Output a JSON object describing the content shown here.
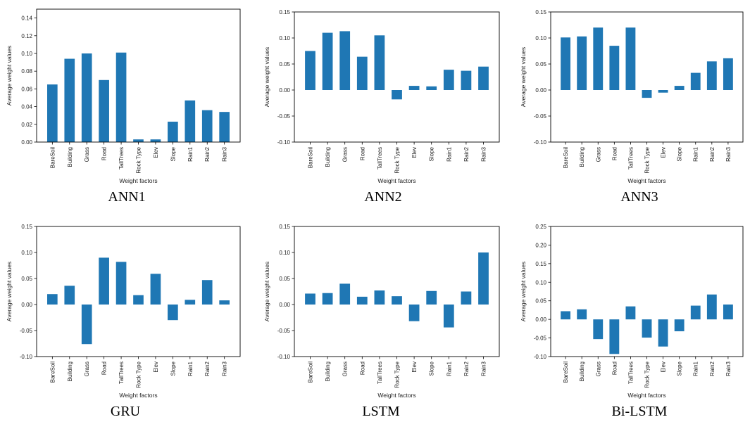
{
  "chart_data": [
    {
      "type": "bar",
      "caption": "ANN1",
      "xlabel": "Weight factors",
      "ylabel": "Average weight values",
      "categories": [
        "BareSoil",
        "Building",
        "Grass",
        "Road",
        "TallTrees",
        "Rock Type",
        "Elev",
        "Slope",
        "Rain1",
        "Rain2",
        "Rain3"
      ],
      "values": [
        0.065,
        0.094,
        0.1,
        0.07,
        0.101,
        0.003,
        0.003,
        0.023,
        0.047,
        0.036,
        0.034
      ],
      "ylim": [
        0,
        0.15
      ],
      "yticks": [
        0.0,
        0.02,
        0.04,
        0.06,
        0.08,
        0.1,
        0.12,
        0.14
      ],
      "ytick_labels": [
        "0.00",
        "0.02",
        "0.04",
        "0.06",
        "0.08",
        "0.10",
        "0.12",
        "0.14"
      ],
      "color": "#1f77b4"
    },
    {
      "type": "bar",
      "caption": "ANN2",
      "xlabel": "Weight factors",
      "ylabel": "Average weight values",
      "categories": [
        "BareSoil",
        "Building",
        "Grass",
        "Road",
        "TallTrees",
        "Rock Type",
        "Elev",
        "Slope",
        "Rain1",
        "Rain2",
        "Rain3"
      ],
      "values": [
        0.075,
        0.11,
        0.113,
        0.064,
        0.105,
        -0.018,
        0.008,
        0.007,
        0.039,
        0.037,
        0.045
      ],
      "ylim": [
        -0.1,
        0.15
      ],
      "yticks": [
        -0.1,
        -0.05,
        0.0,
        0.05,
        0.1,
        0.15
      ],
      "ytick_labels": [
        "-0.10",
        "-0.05",
        "0.00",
        "0.05",
        "0.10",
        "0.15"
      ],
      "color": "#1f77b4"
    },
    {
      "type": "bar",
      "caption": "ANN3",
      "xlabel": "Weight factors",
      "ylabel": "Average weight values",
      "categories": [
        "BareSoil",
        "Building",
        "Grass",
        "Road",
        "TallTrees",
        "Rock Type",
        "Elev",
        "Slope",
        "Rain1",
        "Rain2",
        "Rain3"
      ],
      "values": [
        0.101,
        0.103,
        0.12,
        0.085,
        0.12,
        -0.015,
        -0.005,
        0.008,
        0.033,
        0.055,
        0.061
      ],
      "ylim": [
        -0.1,
        0.15
      ],
      "yticks": [
        -0.1,
        -0.05,
        0.0,
        0.05,
        0.1,
        0.15
      ],
      "ytick_labels": [
        "-0.10",
        "-0.05",
        "0.00",
        "0.05",
        "0.10",
        "0.15"
      ],
      "color": "#1f77b4"
    },
    {
      "type": "bar",
      "caption": "GRU",
      "xlabel": "Weight factors",
      "ylabel": "Average weight values",
      "categories": [
        "BareSoil",
        "Building",
        "Grass",
        "Road",
        "TallTrees",
        "Rock Type",
        "Elev",
        "Slope",
        "Rain1",
        "Rain2",
        "Rain3"
      ],
      "values": [
        0.02,
        0.036,
        -0.076,
        0.09,
        0.082,
        0.018,
        0.059,
        -0.03,
        0.009,
        0.047,
        0.008
      ],
      "ylim": [
        -0.1,
        0.15
      ],
      "yticks": [
        -0.1,
        -0.05,
        0.0,
        0.05,
        0.1,
        0.15
      ],
      "ytick_labels": [
        "-0.10",
        "-0.05",
        "0.00",
        "0.05",
        "0.10",
        "0.15"
      ],
      "color": "#1f77b4"
    },
    {
      "type": "bar",
      "caption": "LSTM",
      "xlabel": "Weight factors",
      "ylabel": "Average weight values",
      "categories": [
        "BareSoil",
        "Building",
        "Grass",
        "Road",
        "TallTrees",
        "Rock Type",
        "Elev",
        "Slope",
        "Rain1",
        "Rain2",
        "Rain3"
      ],
      "values": [
        0.021,
        0.022,
        0.04,
        0.015,
        0.027,
        0.016,
        -0.032,
        0.026,
        -0.044,
        0.025,
        0.1
      ],
      "ylim": [
        -0.1,
        0.15
      ],
      "yticks": [
        -0.1,
        -0.05,
        0.0,
        0.05,
        0.1,
        0.15
      ],
      "ytick_labels": [
        "-0.10",
        "-0.05",
        "0.00",
        "0.05",
        "0.10",
        "0.15"
      ],
      "color": "#1f77b4"
    },
    {
      "type": "bar",
      "caption": "Bi-LSTM",
      "xlabel": "Weight factors",
      "ylabel": "Average weight values",
      "categories": [
        "BareSoil",
        "Building",
        "Grass",
        "Road",
        "TallTrees",
        "Rock Type",
        "Elev",
        "Slope",
        "Rain1",
        "Rain2",
        "Rain3"
      ],
      "values": [
        0.022,
        0.027,
        -0.053,
        -0.093,
        0.035,
        -0.049,
        -0.073,
        -0.032,
        0.037,
        0.067,
        0.04
      ],
      "ylim": [
        -0.1,
        0.25
      ],
      "yticks": [
        -0.1,
        -0.05,
        0.0,
        0.05,
        0.1,
        0.15,
        0.2,
        0.25
      ],
      "ytick_labels": [
        "-0.10",
        "-0.05",
        "0.00",
        "0.05",
        "0.10",
        "0.15",
        "0.20",
        "0.25"
      ],
      "color": "#1f77b4"
    }
  ]
}
